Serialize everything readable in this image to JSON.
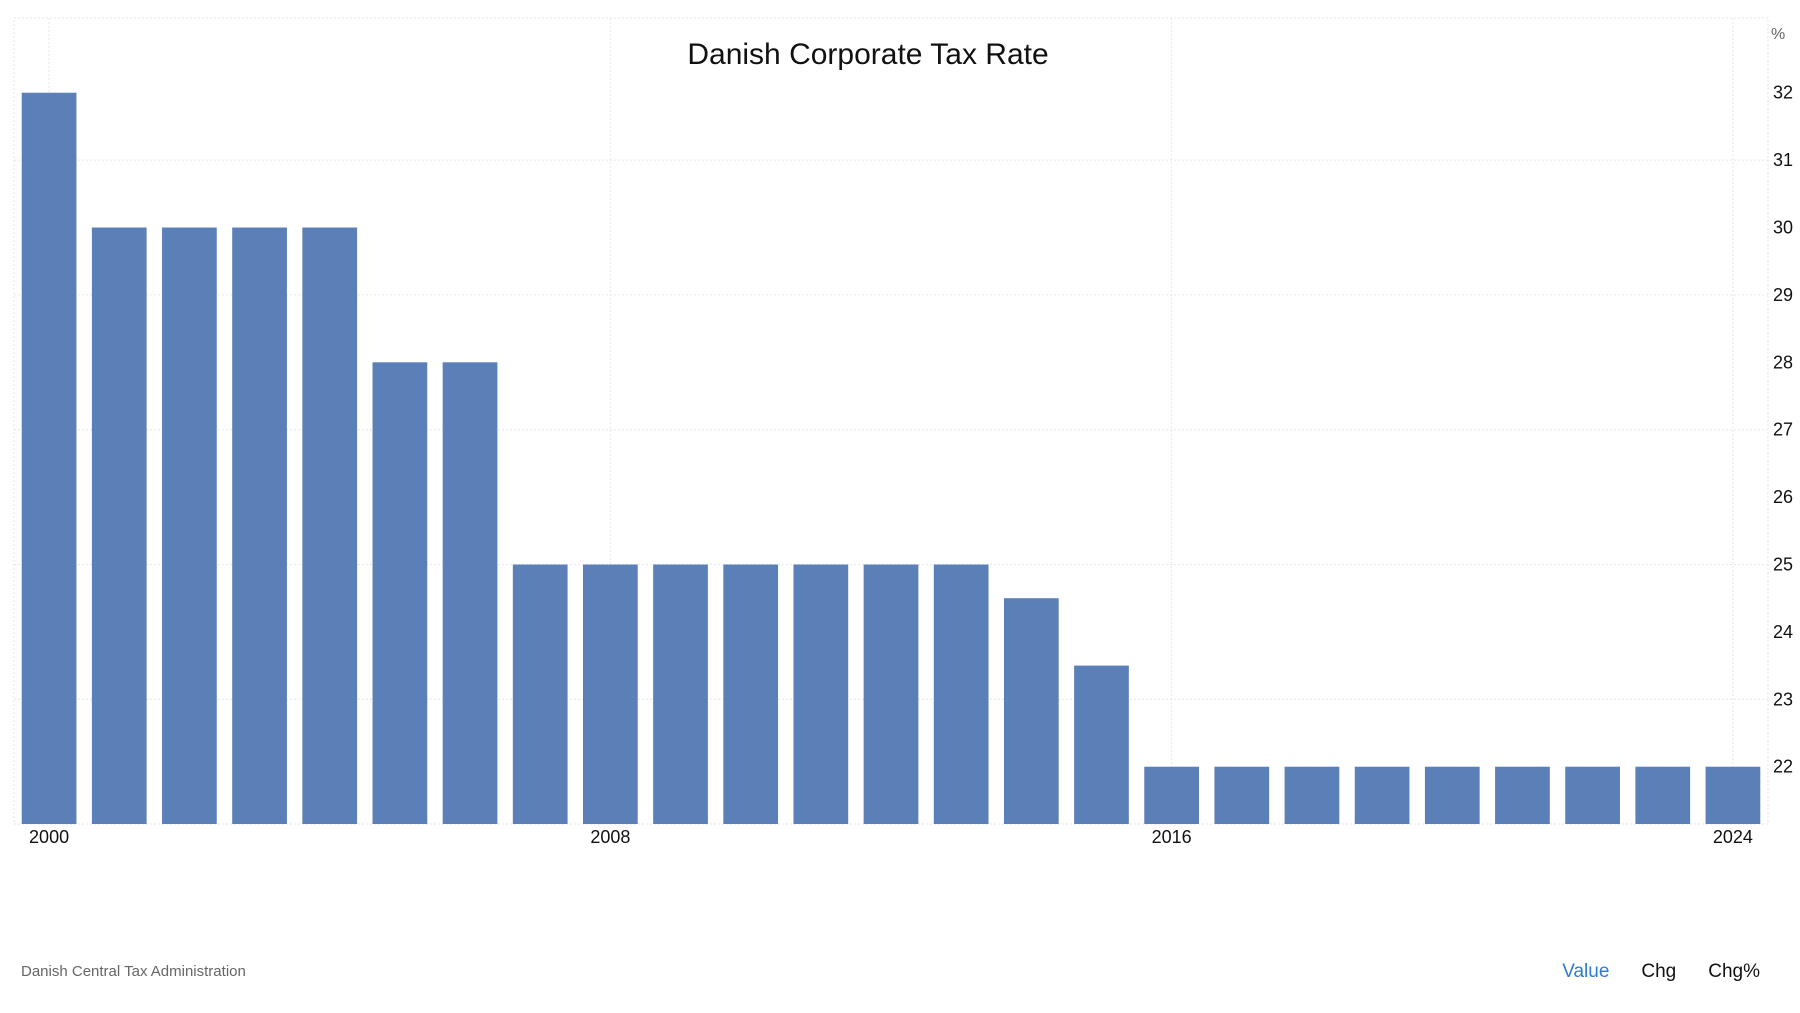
{
  "chart_data": {
    "type": "bar",
    "title": "Danish Corporate Tax Rate",
    "unit": "%",
    "x": [
      2000,
      2001,
      2002,
      2003,
      2004,
      2005,
      2006,
      2007,
      2008,
      2009,
      2010,
      2011,
      2012,
      2013,
      2014,
      2015,
      2016,
      2017,
      2018,
      2019,
      2020,
      2021,
      2022,
      2023,
      2024
    ],
    "values": [
      32,
      30,
      30,
      30,
      30,
      28,
      28,
      25,
      25,
      25,
      25,
      25,
      25,
      25,
      24.5,
      23.5,
      22,
      22,
      22,
      22,
      22,
      22,
      22,
      22,
      22
    ],
    "x_tick_labels": [
      "2000",
      "2008",
      "2016",
      "2024"
    ],
    "y_ticks": [
      22,
      23,
      24,
      25,
      26,
      27,
      28,
      29,
      30,
      31,
      32
    ],
    "ylim": [
      21,
      33
    ],
    "bar_color": "#5b7fb7",
    "grid": true
  },
  "footer": {
    "source": "Danish Central Tax Administration",
    "tabs": [
      "Value",
      "Chg",
      "Chg%"
    ],
    "active_tab": "Value",
    "accent_color": "#2b7cd3"
  }
}
